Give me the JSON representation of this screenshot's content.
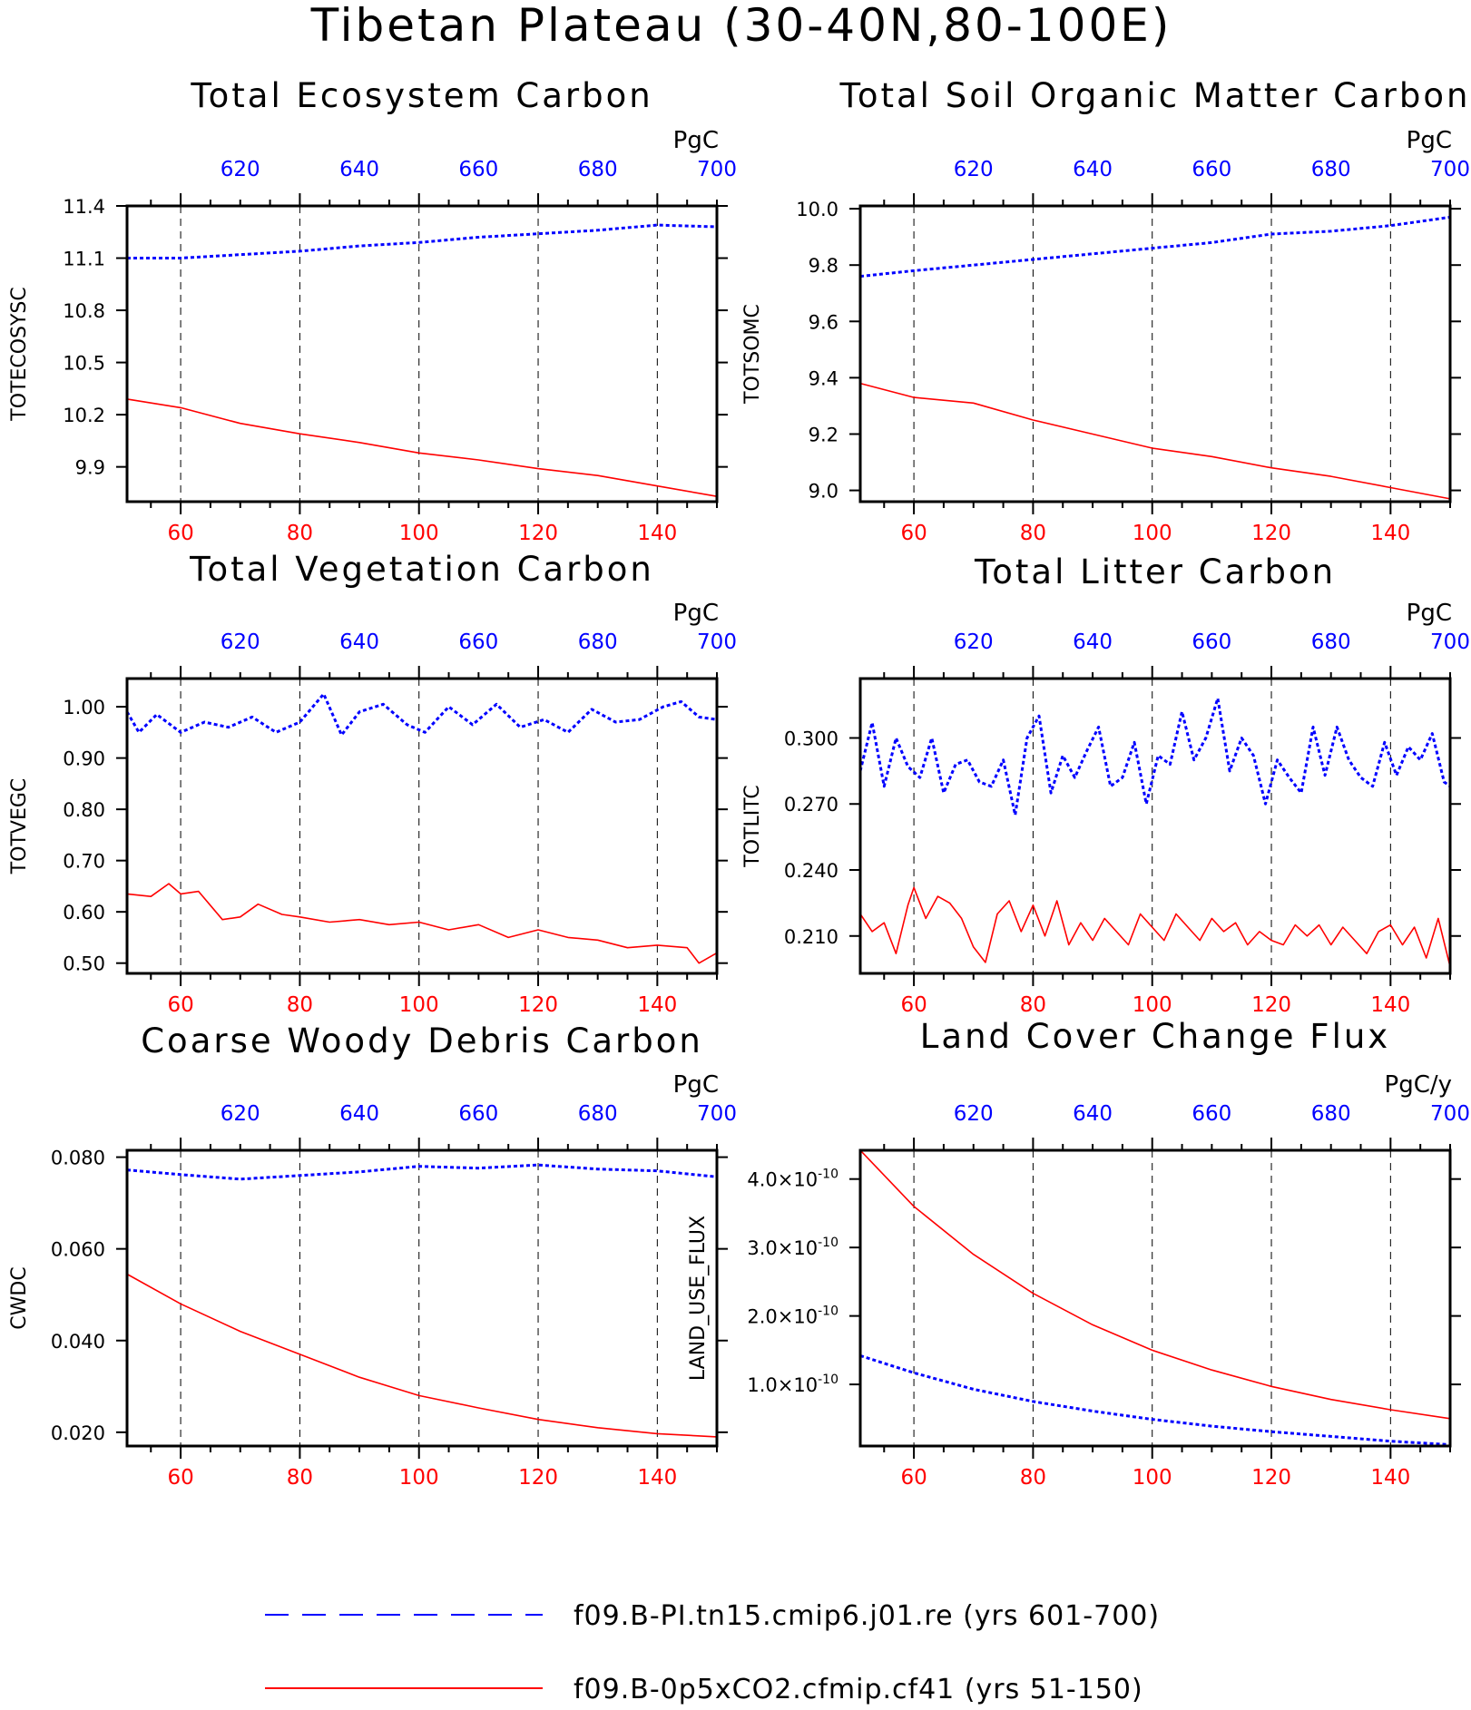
{
  "figure_title": "Tibetan Plateau (30-40N,80-100E)",
  "legend": {
    "entries": [
      {
        "label": "f09.B-PI.tn15.cmip6.j01.re (yrs 601-700)",
        "color": "#0000ff",
        "style": "dashed"
      },
      {
        "label": "f09.B-0p5xCO2.cfmip.cf41 (yrs 51-150)",
        "color": "#ff0000",
        "style": "solid"
      }
    ]
  },
  "colors": {
    "control": "#0000ff",
    "experiment": "#ff0000",
    "grid": "#000000"
  },
  "chart_data": [
    {
      "type": "line",
      "title": "Total Ecosystem Carbon",
      "ylabel": "TOTECOSYSC",
      "unit": "PgC",
      "xlim_bottom": [
        51,
        150
      ],
      "xlim_top": [
        601,
        700
      ],
      "xticks_bottom": [
        "60",
        "80",
        "100",
        "120",
        "140"
      ],
      "xticks_top": [
        "620",
        "640",
        "660",
        "680",
        "700"
      ],
      "ylim": [
        9.7,
        11.4
      ],
      "yticks": [
        "9.9",
        "10.2",
        "10.5",
        "10.8",
        "11.1",
        "11.4"
      ],
      "grid_x": [
        60,
        80,
        100,
        120,
        140
      ],
      "series": [
        {
          "role": "experiment",
          "x": [
            51,
            60,
            70,
            80,
            90,
            100,
            110,
            120,
            130,
            140,
            150
          ],
          "values": [
            10.29,
            10.24,
            10.15,
            10.09,
            10.04,
            9.98,
            9.94,
            9.89,
            9.85,
            9.79,
            9.73
          ]
        },
        {
          "role": "control",
          "x": [
            601,
            610,
            620,
            630,
            640,
            650,
            660,
            670,
            680,
            690,
            700
          ],
          "values": [
            11.1,
            11.1,
            11.12,
            11.14,
            11.17,
            11.19,
            11.22,
            11.24,
            11.26,
            11.29,
            11.28
          ]
        }
      ]
    },
    {
      "type": "line",
      "title": "Total Soil Organic Matter Carbon",
      "ylabel": "TOTSOMC",
      "unit": "PgC",
      "xlim_bottom": [
        51,
        150
      ],
      "xlim_top": [
        601,
        700
      ],
      "xticks_bottom": [
        "60",
        "80",
        "100",
        "120",
        "140"
      ],
      "xticks_top": [
        "620",
        "640",
        "660",
        "680",
        "700"
      ],
      "ylim": [
        8.96,
        10.01
      ],
      "yticks": [
        "9.0",
        "9.2",
        "9.4",
        "9.6",
        "9.8",
        "10.0"
      ],
      "grid_x": [
        60,
        80,
        100,
        120,
        140
      ],
      "series": [
        {
          "role": "experiment",
          "x": [
            51,
            60,
            70,
            80,
            90,
            100,
            110,
            120,
            130,
            140,
            150
          ],
          "values": [
            9.38,
            9.33,
            9.31,
            9.25,
            9.2,
            9.15,
            9.12,
            9.08,
            9.05,
            9.01,
            8.97
          ]
        },
        {
          "role": "control",
          "x": [
            601,
            610,
            620,
            630,
            640,
            650,
            660,
            670,
            680,
            690,
            700
          ],
          "values": [
            9.76,
            9.78,
            9.8,
            9.82,
            9.84,
            9.86,
            9.88,
            9.91,
            9.92,
            9.94,
            9.97
          ]
        }
      ]
    },
    {
      "type": "line",
      "title": "Total Vegetation Carbon",
      "ylabel": "TOTVEGC",
      "unit": "PgC",
      "xlim_bottom": [
        51,
        150
      ],
      "xlim_top": [
        601,
        700
      ],
      "xticks_bottom": [
        "60",
        "80",
        "100",
        "120",
        "140"
      ],
      "xticks_top": [
        "620",
        "640",
        "660",
        "680",
        "700"
      ],
      "ylim": [
        0.48,
        1.055
      ],
      "yticks": [
        "0.50",
        "0.60",
        "0.70",
        "0.80",
        "0.90",
        "1.00"
      ],
      "grid_x": [
        60,
        80,
        100,
        120,
        140
      ],
      "series": [
        {
          "role": "experiment",
          "x": [
            51,
            55,
            58,
            60,
            63,
            67,
            70,
            73,
            77,
            80,
            85,
            90,
            95,
            100,
            105,
            110,
            115,
            120,
            125,
            130,
            135,
            140,
            145,
            147,
            150
          ],
          "values": [
            0.635,
            0.63,
            0.655,
            0.635,
            0.64,
            0.585,
            0.59,
            0.615,
            0.595,
            0.59,
            0.58,
            0.585,
            0.575,
            0.58,
            0.565,
            0.575,
            0.55,
            0.565,
            0.55,
            0.545,
            0.53,
            0.535,
            0.53,
            0.5,
            0.52
          ]
        },
        {
          "role": "control",
          "x": [
            601,
            603,
            606,
            610,
            614,
            618,
            622,
            626,
            630,
            634,
            637,
            640,
            644,
            648,
            651,
            655,
            659,
            663,
            667,
            671,
            675,
            679,
            683,
            687,
            691,
            694,
            697,
            700
          ],
          "values": [
            0.99,
            0.95,
            0.985,
            0.95,
            0.97,
            0.96,
            0.98,
            0.95,
            0.97,
            1.025,
            0.945,
            0.99,
            1.005,
            0.965,
            0.95,
            1.0,
            0.965,
            1.005,
            0.96,
            0.975,
            0.95,
            0.995,
            0.97,
            0.975,
            1.0,
            1.01,
            0.98,
            0.975
          ]
        }
      ]
    },
    {
      "type": "line",
      "title": "Total Litter Carbon",
      "ylabel": "TOTLITC",
      "unit": "PgC",
      "xlim_bottom": [
        51,
        150
      ],
      "xlim_top": [
        601,
        700
      ],
      "xticks_bottom": [
        "60",
        "80",
        "100",
        "120",
        "140"
      ],
      "xticks_top": [
        "620",
        "640",
        "660",
        "680",
        "700"
      ],
      "ylim": [
        0.193,
        0.327
      ],
      "yticks": [
        "0.210",
        "0.240",
        "0.270",
        "0.300"
      ],
      "grid_x": [
        60,
        80,
        100,
        120,
        140
      ],
      "series": [
        {
          "role": "experiment",
          "x": [
            51,
            53,
            55,
            57,
            59,
            60,
            62,
            64,
            66,
            68,
            70,
            72,
            74,
            76,
            78,
            80,
            82,
            84,
            86,
            88,
            90,
            92,
            94,
            96,
            98,
            100,
            102,
            104,
            106,
            108,
            110,
            112,
            114,
            116,
            118,
            120,
            122,
            124,
            126,
            128,
            130,
            132,
            134,
            136,
            138,
            140,
            142,
            144,
            146,
            148,
            150
          ],
          "values": [
            0.22,
            0.212,
            0.216,
            0.202,
            0.224,
            0.232,
            0.218,
            0.228,
            0.225,
            0.218,
            0.205,
            0.198,
            0.22,
            0.226,
            0.212,
            0.224,
            0.21,
            0.226,
            0.206,
            0.216,
            0.208,
            0.218,
            0.212,
            0.206,
            0.22,
            0.214,
            0.208,
            0.22,
            0.214,
            0.208,
            0.218,
            0.212,
            0.216,
            0.206,
            0.212,
            0.208,
            0.206,
            0.215,
            0.21,
            0.215,
            0.206,
            0.214,
            0.208,
            0.202,
            0.212,
            0.215,
            0.206,
            0.214,
            0.2,
            0.218,
            0.196
          ]
        },
        {
          "role": "control",
          "x": [
            601,
            603,
            605,
            607,
            609,
            611,
            613,
            615,
            617,
            619,
            621,
            623,
            625,
            627,
            629,
            631,
            633,
            635,
            637,
            639,
            641,
            643,
            645,
            647,
            649,
            651,
            653,
            655,
            657,
            659,
            661,
            663,
            665,
            667,
            669,
            671,
            673,
            675,
            677,
            679,
            681,
            683,
            685,
            687,
            689,
            691,
            693,
            695,
            697,
            699,
            700
          ],
          "values": [
            0.285,
            0.307,
            0.278,
            0.3,
            0.287,
            0.282,
            0.3,
            0.275,
            0.288,
            0.29,
            0.28,
            0.278,
            0.29,
            0.265,
            0.3,
            0.31,
            0.275,
            0.292,
            0.282,
            0.294,
            0.305,
            0.278,
            0.282,
            0.298,
            0.27,
            0.292,
            0.288,
            0.312,
            0.29,
            0.3,
            0.318,
            0.285,
            0.3,
            0.292,
            0.27,
            0.29,
            0.282,
            0.275,
            0.305,
            0.283,
            0.305,
            0.29,
            0.282,
            0.278,
            0.298,
            0.283,
            0.296,
            0.29,
            0.302,
            0.28,
            0.278
          ]
        }
      ]
    },
    {
      "type": "line",
      "title": "Coarse Woody Debris Carbon",
      "ylabel": "CWDC",
      "unit": "PgC",
      "xlim_bottom": [
        51,
        150
      ],
      "xlim_top": [
        601,
        700
      ],
      "xticks_bottom": [
        "60",
        "80",
        "100",
        "120",
        "140"
      ],
      "xticks_top": [
        "620",
        "640",
        "660",
        "680",
        "700"
      ],
      "ylim": [
        0.017,
        0.0815
      ],
      "yticks": [
        "0.020",
        "0.040",
        "0.060",
        "0.080"
      ],
      "grid_x": [
        60,
        80,
        100,
        120,
        140
      ],
      "series": [
        {
          "role": "experiment",
          "x": [
            51,
            60,
            70,
            80,
            90,
            100,
            110,
            120,
            130,
            140,
            150
          ],
          "values": [
            0.0545,
            0.048,
            0.042,
            0.037,
            0.032,
            0.028,
            0.0253,
            0.0228,
            0.021,
            0.0197,
            0.019
          ]
        },
        {
          "role": "control",
          "x": [
            601,
            610,
            620,
            630,
            640,
            650,
            660,
            670,
            680,
            690,
            700
          ],
          "values": [
            0.0772,
            0.0762,
            0.0752,
            0.076,
            0.0768,
            0.078,
            0.0776,
            0.0783,
            0.0774,
            0.077,
            0.0757
          ]
        }
      ]
    },
    {
      "type": "line",
      "title": "Land Cover Change Flux",
      "ylabel": "LAND_USE_FLUX",
      "unit": "PgC/y",
      "xlim_bottom": [
        51,
        150
      ],
      "xlim_top": [
        601,
        700
      ],
      "xticks_bottom": [
        "60",
        "80",
        "100",
        "120",
        "140"
      ],
      "xticks_top": [
        "620",
        "640",
        "660",
        "680",
        "700"
      ],
      "ylim": [
        1e-11,
        4.42e-10
      ],
      "yticks": [
        {
          "value": 1e-10,
          "mantissa": "1.0",
          "exponent": "-10"
        },
        {
          "value": 2e-10,
          "mantissa": "2.0",
          "exponent": "-10"
        },
        {
          "value": 3e-10,
          "mantissa": "3.0",
          "exponent": "-10"
        },
        {
          "value": 4e-10,
          "mantissa": "4.0",
          "exponent": "-10"
        }
      ],
      "grid_x": [
        60,
        80,
        100,
        120,
        140
      ],
      "series": [
        {
          "role": "experiment",
          "x": [
            51,
            60,
            70,
            80,
            90,
            100,
            110,
            120,
            130,
            140,
            150
          ],
          "values": [
            4.42e-10,
            3.6e-10,
            2.9e-10,
            2.33e-10,
            1.87e-10,
            1.5e-10,
            1.21e-10,
            9.7e-11,
            7.8e-11,
            6.3e-11,
            5e-11
          ]
        },
        {
          "role": "control",
          "x": [
            601,
            610,
            620,
            630,
            640,
            650,
            660,
            670,
            680,
            690,
            700
          ],
          "values": [
            1.42e-10,
            1.17e-10,
            9.3e-11,
            7.5e-11,
            6.1e-11,
            4.9e-11,
            3.9e-11,
            3.1e-11,
            2.4e-11,
            1.7e-11,
            1.2e-11
          ]
        }
      ]
    }
  ]
}
